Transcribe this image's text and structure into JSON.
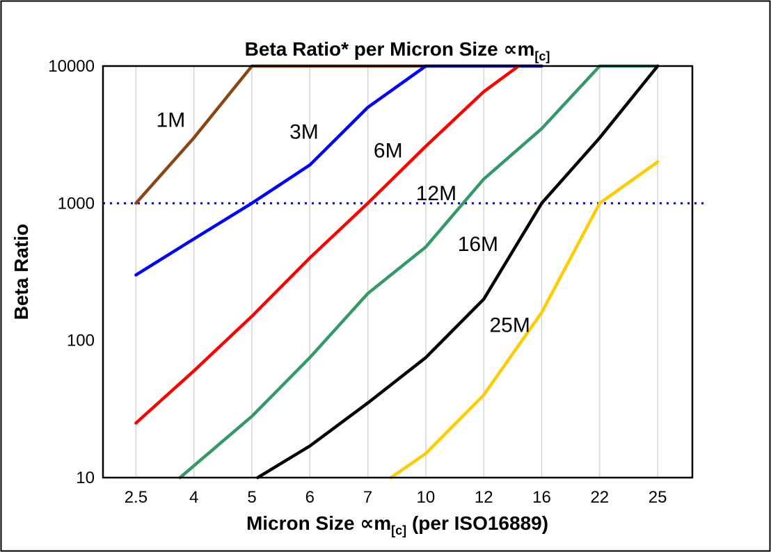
{
  "chart_data": {
    "type": "line",
    "title": {
      "main": "Beta Ratio* per Micron Size ",
      "symbol": "∝m",
      "sub": "[c]"
    },
    "x_axis": {
      "label_prefix": "Micron Size ",
      "label_symbol": "∝m",
      "label_sub": "[c]",
      "label_suffix": " (per ISO16889)",
      "categories": [
        "2.5",
        "4",
        "5",
        "6",
        "7",
        "10",
        "12",
        "16",
        "22",
        "25"
      ]
    },
    "y_axis": {
      "label": "Beta Ratio",
      "scale": "log",
      "ticks": [
        "10",
        "100",
        "1000",
        "10000"
      ],
      "range": [
        10,
        10000
      ]
    },
    "grid": {
      "vertical": true,
      "horizontal": false,
      "color": "#d0d0d0"
    },
    "reference_line": {
      "value": 1000,
      "color": "#0000ff",
      "style": "dotted"
    },
    "series": [
      {
        "name": "1M",
        "color": "#8B4513",
        "points": [
          [
            0,
            1000
          ],
          [
            1,
            3000
          ],
          [
            2,
            10000
          ],
          [
            5,
            10000
          ]
        ]
      },
      {
        "name": "3M",
        "color": "#0000FF",
        "points": [
          [
            0,
            300
          ],
          [
            1,
            550
          ],
          [
            2,
            1000
          ],
          [
            3,
            1900
          ],
          [
            4,
            5000
          ],
          [
            5,
            10000
          ],
          [
            7,
            10000
          ]
        ]
      },
      {
        "name": "6M",
        "color": "#FF0000",
        "points": [
          [
            0,
            25
          ],
          [
            1,
            60
          ],
          [
            2,
            150
          ],
          [
            3,
            400
          ],
          [
            4,
            1000
          ],
          [
            5,
            2600
          ],
          [
            6,
            6500
          ],
          [
            6.6,
            10000
          ]
        ]
      },
      {
        "name": "12M",
        "color": "#339966",
        "points": [
          [
            0.76,
            10
          ],
          [
            2,
            28
          ],
          [
            3,
            75
          ],
          [
            4,
            220
          ],
          [
            5,
            480
          ],
          [
            6,
            1500
          ],
          [
            7,
            3500
          ],
          [
            8,
            10000
          ],
          [
            9,
            10000
          ]
        ]
      },
      {
        "name": "16M",
        "color": "#000000",
        "points": [
          [
            2.1,
            10
          ],
          [
            3,
            17
          ],
          [
            4,
            35
          ],
          [
            5,
            75
          ],
          [
            6,
            200
          ],
          [
            7,
            1000
          ],
          [
            8,
            3000
          ],
          [
            9,
            10000
          ]
        ]
      },
      {
        "name": "25M",
        "color": "#FFCC00",
        "points": [
          [
            4.4,
            10
          ],
          [
            5,
            15
          ],
          [
            6,
            40
          ],
          [
            7,
            160
          ],
          [
            8,
            1000
          ],
          [
            9,
            2000
          ]
        ]
      }
    ],
    "labels": [
      {
        "text": "1M",
        "color": "#A0522D",
        "xi": 0.6,
        "value": 3600
      },
      {
        "text": "3M",
        "color": "#0000FF",
        "xi": 2.9,
        "value": 2950
      },
      {
        "text": "6M",
        "color": "#FF0000",
        "xi": 4.35,
        "value": 2150
      },
      {
        "text": "12M",
        "color": "#339966",
        "xi": 5.18,
        "value": 1050
      },
      {
        "text": "16M",
        "color": "#000000",
        "xi": 5.9,
        "value": 450
      },
      {
        "text": "25M",
        "color": "#FFCC00",
        "xi": 6.45,
        "value": 115
      }
    ]
  }
}
